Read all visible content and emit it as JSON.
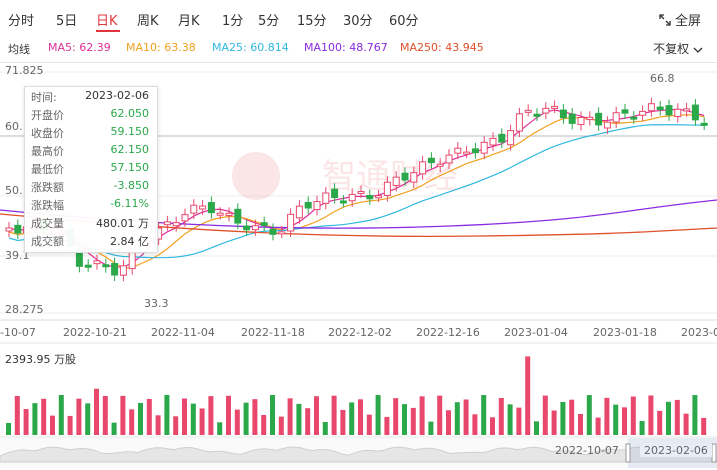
{
  "tabs": [
    {
      "label": "分时",
      "active": false
    },
    {
      "label": "5日",
      "active": false
    },
    {
      "label": "日K",
      "active": true
    },
    {
      "label": "周K",
      "active": false
    },
    {
      "label": "月K",
      "active": false
    },
    {
      "label": "1分",
      "active": false
    },
    {
      "label": "5分",
      "active": false
    },
    {
      "label": "15分",
      "active": false
    },
    {
      "label": "30分",
      "active": false
    },
    {
      "label": "60分",
      "active": false
    }
  ],
  "fullscreen_label": "全屏",
  "ma": {
    "title": "均线",
    "ma5": "MA5: 62.39",
    "ma10": "MA10: 63.38",
    "ma25": "MA25: 60.814",
    "ma100": "MA100: 48.767",
    "ma250": "MA250: 43.945",
    "adjust": "不复权",
    "colors": {
      "ma5": "#e0309a",
      "ma10": "#f0a020",
      "ma25": "#30b8e0",
      "ma100": "#8a2be2",
      "ma250": "#e0502a"
    }
  },
  "tooltip": {
    "rows": [
      {
        "k": "时间:",
        "v": "2023-02-06",
        "color": "#333"
      },
      {
        "k": "开盘价",
        "v": "62.050",
        "color": "#2aa84a"
      },
      {
        "k": "收盘价",
        "v": "59.150",
        "color": "#2aa84a"
      },
      {
        "k": "最高价",
        "v": "62.150",
        "color": "#2aa84a"
      },
      {
        "k": "最低价",
        "v": "57.150",
        "color": "#2aa84a"
      },
      {
        "k": "涨跌额",
        "v": "-3.850",
        "color": "#2aa84a"
      },
      {
        "k": "涨跌幅",
        "v": "-6.11%",
        "color": "#2aa84a"
      },
      {
        "k": "成交量",
        "v": "480.01 万",
        "color": "#333"
      },
      {
        "k": "成交额",
        "v": "2.84 亿",
        "color": "#333"
      }
    ]
  },
  "price_axis": [
    "71.825",
    "60.",
    "50.",
    "39.1",
    "28.275"
  ],
  "annotations": {
    "high": "66.8",
    "low": "33.3"
  },
  "date_axis": [
    "-10-07",
    "2022-10-21",
    "2022-11-04",
    "2022-11-18",
    "2022-12-02",
    "2022-12-16",
    "2023-01-04",
    "2023-01-18",
    "2023-0"
  ],
  "volume_label": "2393.95 万股",
  "navigator": {
    "start": "2022-10-07",
    "end": "2023-02-06"
  },
  "watermark": "智通财经",
  "colors": {
    "up": "#e8486b",
    "down": "#2aa84a",
    "accent": "#e0353b"
  }
}
